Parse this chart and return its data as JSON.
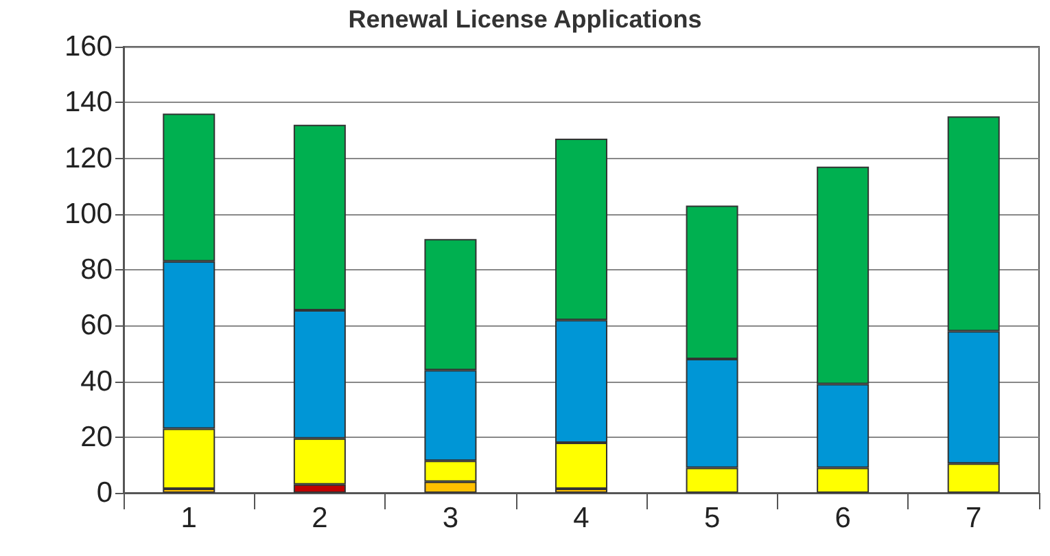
{
  "chart_data": {
    "type": "bar",
    "title": "Renewal License Applications",
    "stacked": true,
    "categories": [
      "1",
      "2",
      "3",
      "4",
      "5",
      "6",
      "7"
    ],
    "series": [
      {
        "color": "#ffc000",
        "values": [
          1.5,
          null,
          4,
          1.5,
          null,
          null,
          null
        ]
      },
      {
        "color": "#c00000",
        "values": [
          null,
          3,
          null,
          null,
          null,
          null,
          null
        ]
      },
      {
        "color": "#ffff00",
        "values": [
          21.5,
          16.5,
          7.5,
          16.5,
          9,
          9,
          10.5
        ]
      },
      {
        "color": "#0096d6",
        "values": [
          60,
          46,
          32.5,
          44,
          39,
          30,
          47.5
        ]
      },
      {
        "color": "#00b050",
        "values": [
          53,
          66.5,
          47,
          65,
          55,
          78,
          77
        ]
      }
    ],
    "ylim": [
      0,
      160
    ],
    "yticks": [
      0,
      20,
      40,
      60,
      80,
      100,
      120,
      140,
      160
    ],
    "grid": "y"
  }
}
